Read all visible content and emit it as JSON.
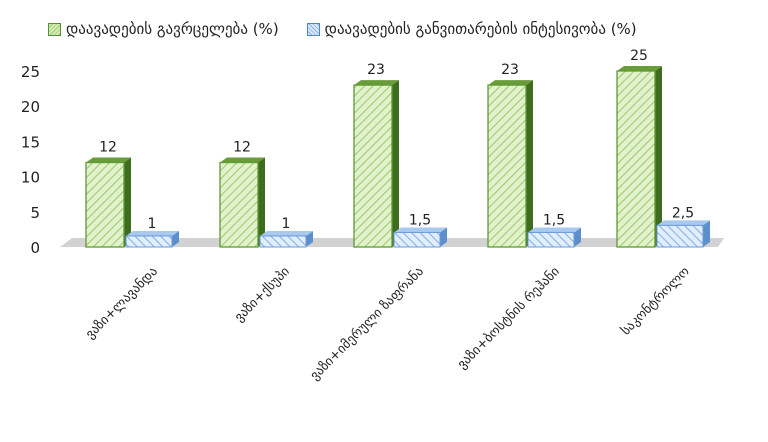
{
  "chart_data": {
    "type": "bar",
    "categories": [
      "ვაზი+ლავანდა",
      "ვაზი+ქსუპი",
      "ვაზი+იმერული ზაფრანა",
      "ვაზი+ბოსტნის რეჰანი",
      "საკონტროლო"
    ],
    "series": [
      {
        "name": "დაავადების გავრცელება (%)",
        "values": [
          12,
          12,
          23,
          23,
          25
        ],
        "labels": [
          "12",
          "12",
          "23",
          "23",
          "25"
        ],
        "color": "#8bc34a"
      },
      {
        "name": "დაავადების  განვითარების ინტესივობა (%)",
        "values": [
          1,
          1,
          1.5,
          1.5,
          2.5
        ],
        "labels": [
          "1",
          "1",
          "1,5",
          "1,5",
          "2,5"
        ],
        "color": "#7fb2e8"
      }
    ],
    "yticks": [
      "0",
      "5",
      "10",
      "15",
      "20",
      "25"
    ],
    "ylim": [
      0,
      25
    ],
    "legend": "top",
    "grid": false
  }
}
